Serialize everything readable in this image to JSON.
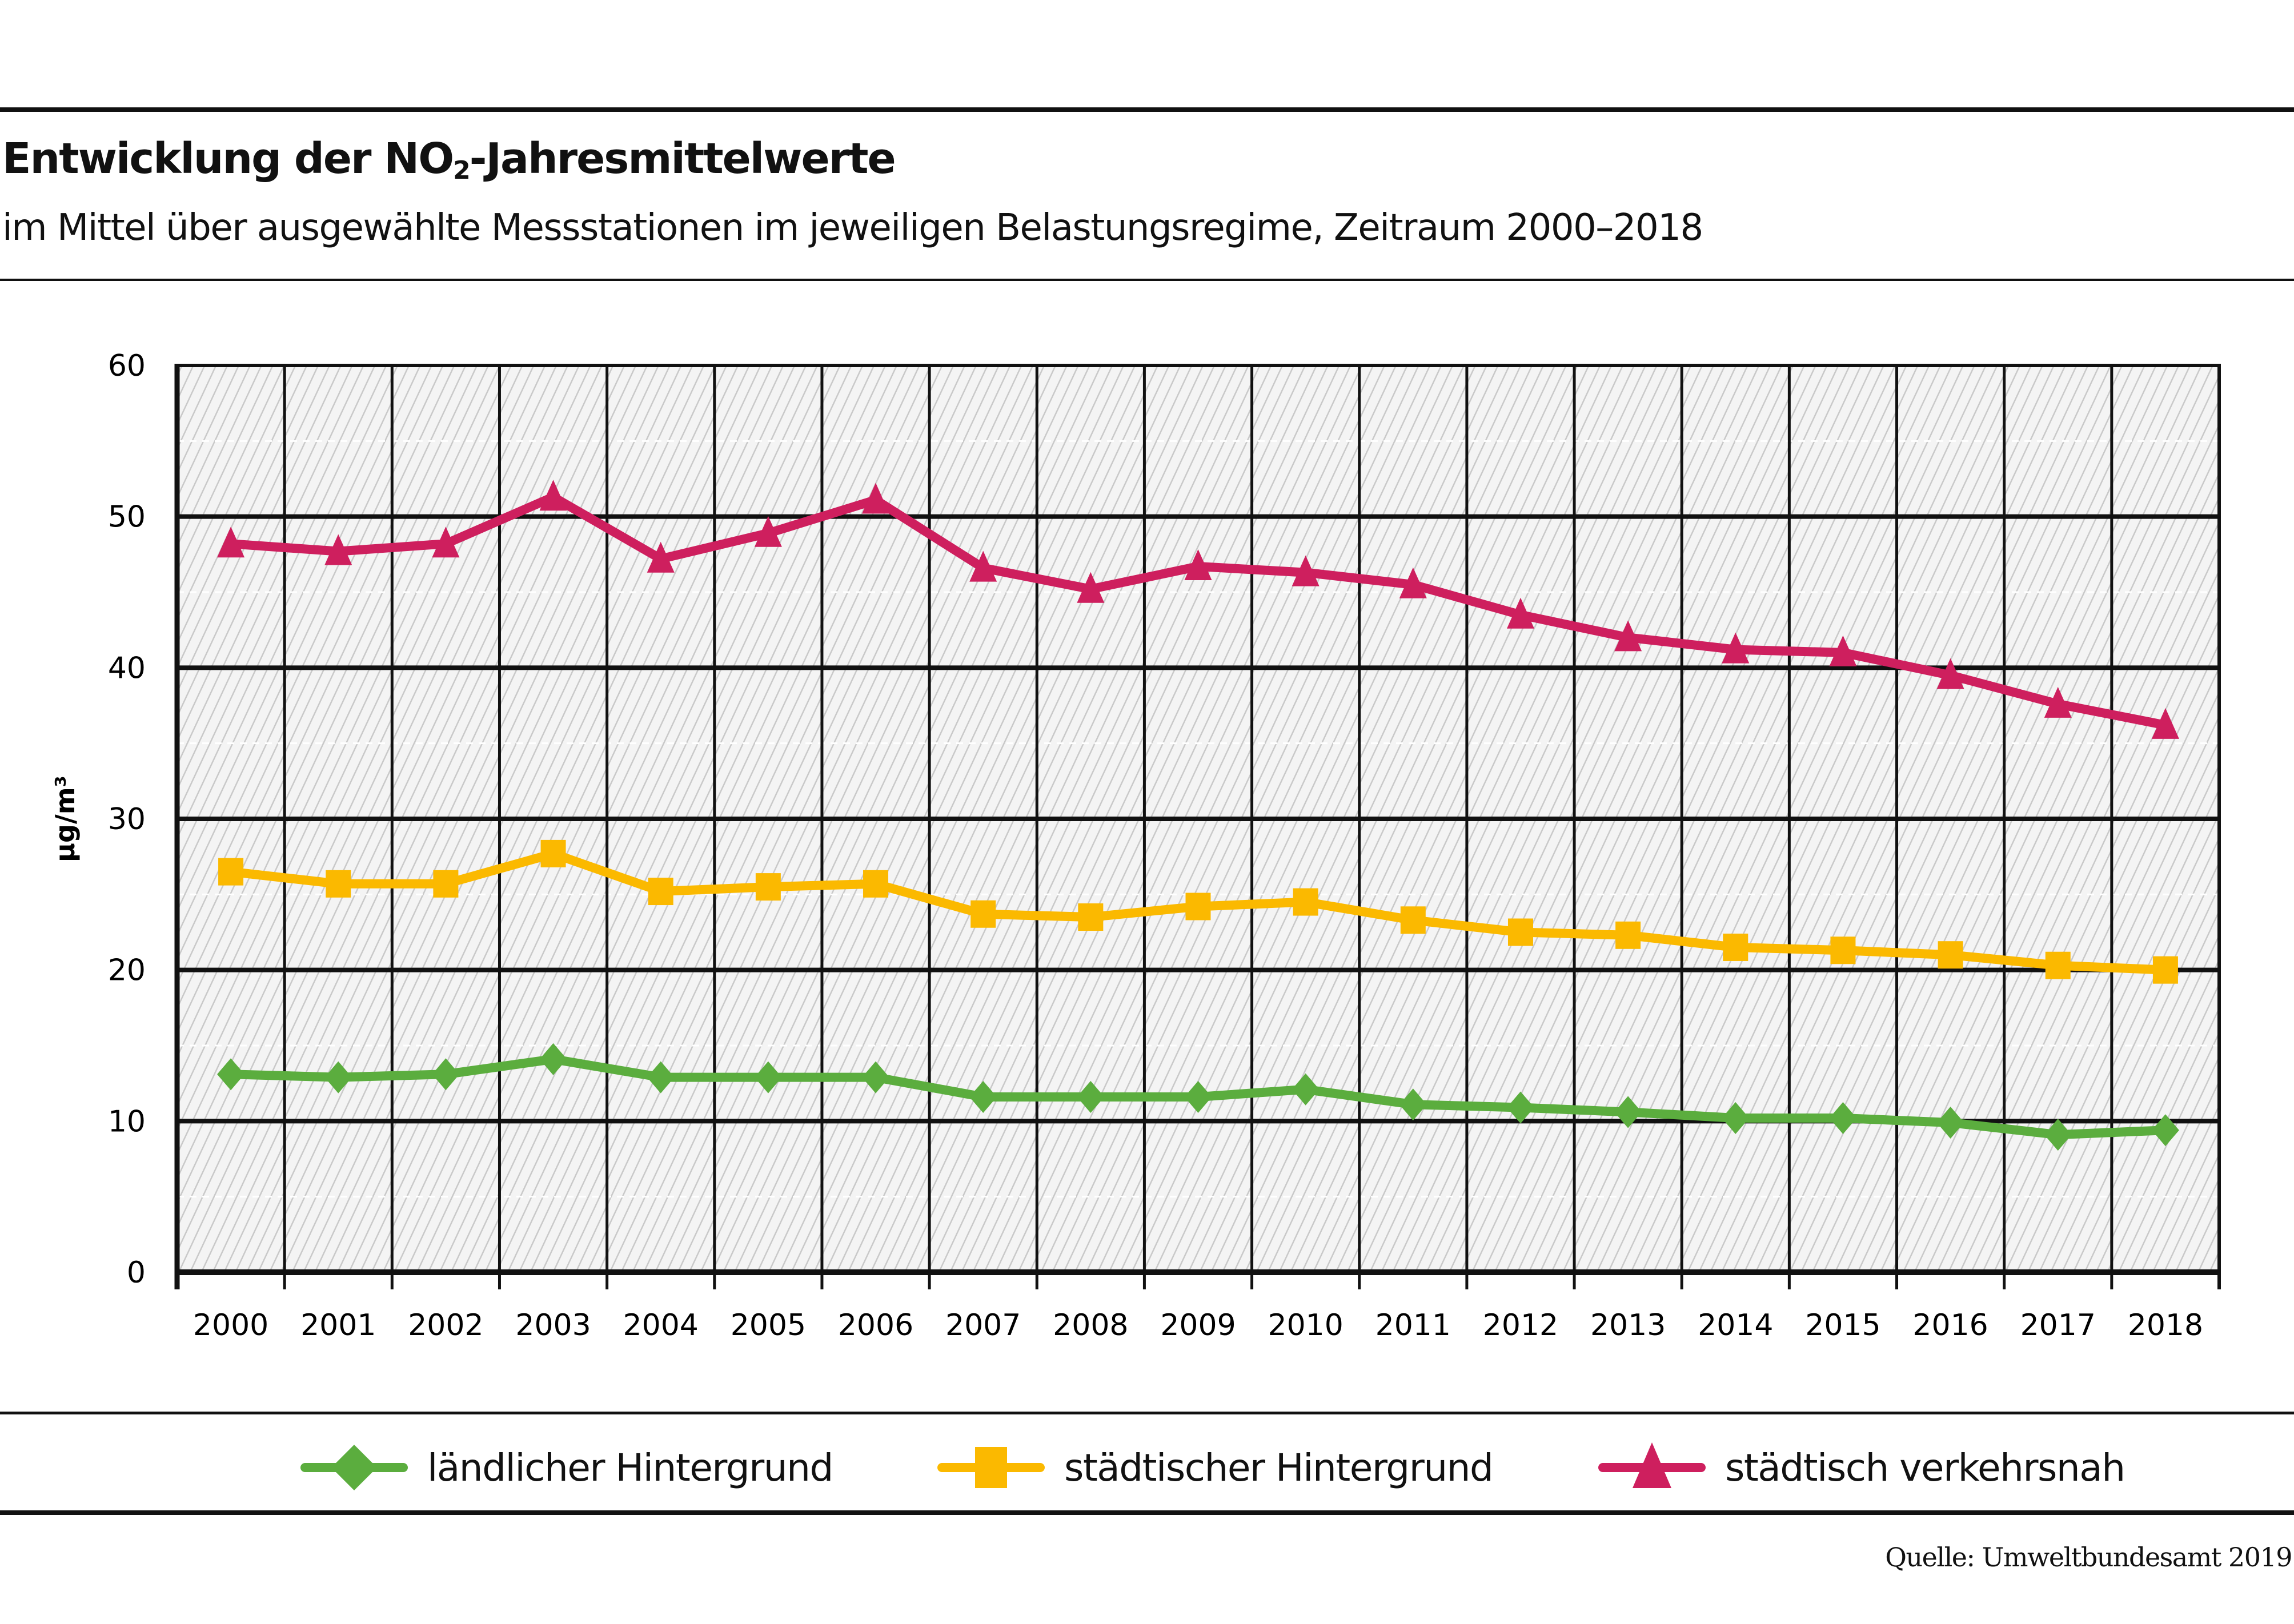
{
  "header": {
    "title_prefix": "Entwicklung der NO",
    "title_sub": "2",
    "title_suffix": "-Jahresmittelwerte",
    "subtitle": "im Mittel über ausgewählte Messstationen im jeweiligen Belastungsregime, Zeitraum 2000–2018"
  },
  "source": "Quelle: Umweltbundesamt 2019",
  "chart_data": {
    "type": "line",
    "title": "Entwicklung der NO2-Jahresmittelwerte",
    "subtitle": "im Mittel über ausgewählte Messstationen im jeweiligen Belastungsregime, Zeitraum 2000–2018",
    "xlabel": "",
    "ylabel": "µg/m³",
    "ylim": [
      0,
      60
    ],
    "yticks": [
      0,
      10,
      20,
      30,
      40,
      50,
      60
    ],
    "grid": true,
    "legend_position": "bottom",
    "x": [
      "2000",
      "2001",
      "2002",
      "2003",
      "2004",
      "2005",
      "2006",
      "2007",
      "2008",
      "2009",
      "2010",
      "2011",
      "2012",
      "2013",
      "2014",
      "2015",
      "2016",
      "2017",
      "2018"
    ],
    "series": [
      {
        "name": "ländlicher Hintergrund",
        "color": "#5BAD3E",
        "marker": "diamond",
        "values": [
          13.1,
          12.9,
          13.1,
          14.1,
          12.9,
          12.9,
          12.9,
          11.6,
          11.6,
          11.6,
          12.1,
          11.1,
          10.9,
          10.6,
          10.2,
          10.2,
          9.9,
          9.1,
          9.4
        ]
      },
      {
        "name": "städtischer Hintergrund",
        "color": "#FBB900",
        "marker": "square",
        "values": [
          26.5,
          25.7,
          25.7,
          27.7,
          25.2,
          25.5,
          25.7,
          23.7,
          23.5,
          24.2,
          24.5,
          23.3,
          22.5,
          22.3,
          21.5,
          21.3,
          21.0,
          20.3,
          20.0
        ]
      },
      {
        "name": "städtisch verkehrsnah",
        "color": "#CE1F5E",
        "marker": "triangle",
        "values": [
          48.2,
          47.7,
          48.2,
          51.3,
          47.2,
          48.9,
          51.1,
          46.6,
          45.2,
          46.7,
          46.3,
          45.5,
          43.5,
          42.0,
          41.2,
          41.0,
          39.5,
          37.6,
          36.2
        ]
      }
    ]
  }
}
